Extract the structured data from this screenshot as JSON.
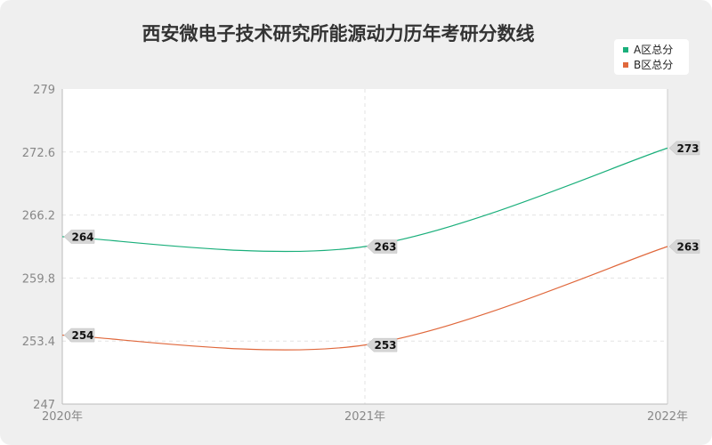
{
  "chart_data": {
    "type": "line",
    "title": "西安微电子技术研究所能源动力历年考研分数线",
    "x": [
      "2020年",
      "2021年",
      "2022年"
    ],
    "ylim": [
      247,
      279
    ],
    "yticks": [
      "279",
      "272.6",
      "266.2",
      "259.8",
      "253.4",
      "247"
    ],
    "grid": true,
    "legend_position": "top-right",
    "series": [
      {
        "name": "A区总分",
        "values": [
          264,
          263,
          273
        ],
        "color": "#1aaf7b"
      },
      {
        "name": "B区总分",
        "values": [
          254,
          253,
          263
        ],
        "color": "#e0683c"
      }
    ],
    "data_labels": [
      [
        "264",
        "263",
        "273"
      ],
      [
        "254",
        "253",
        "263"
      ]
    ]
  }
}
